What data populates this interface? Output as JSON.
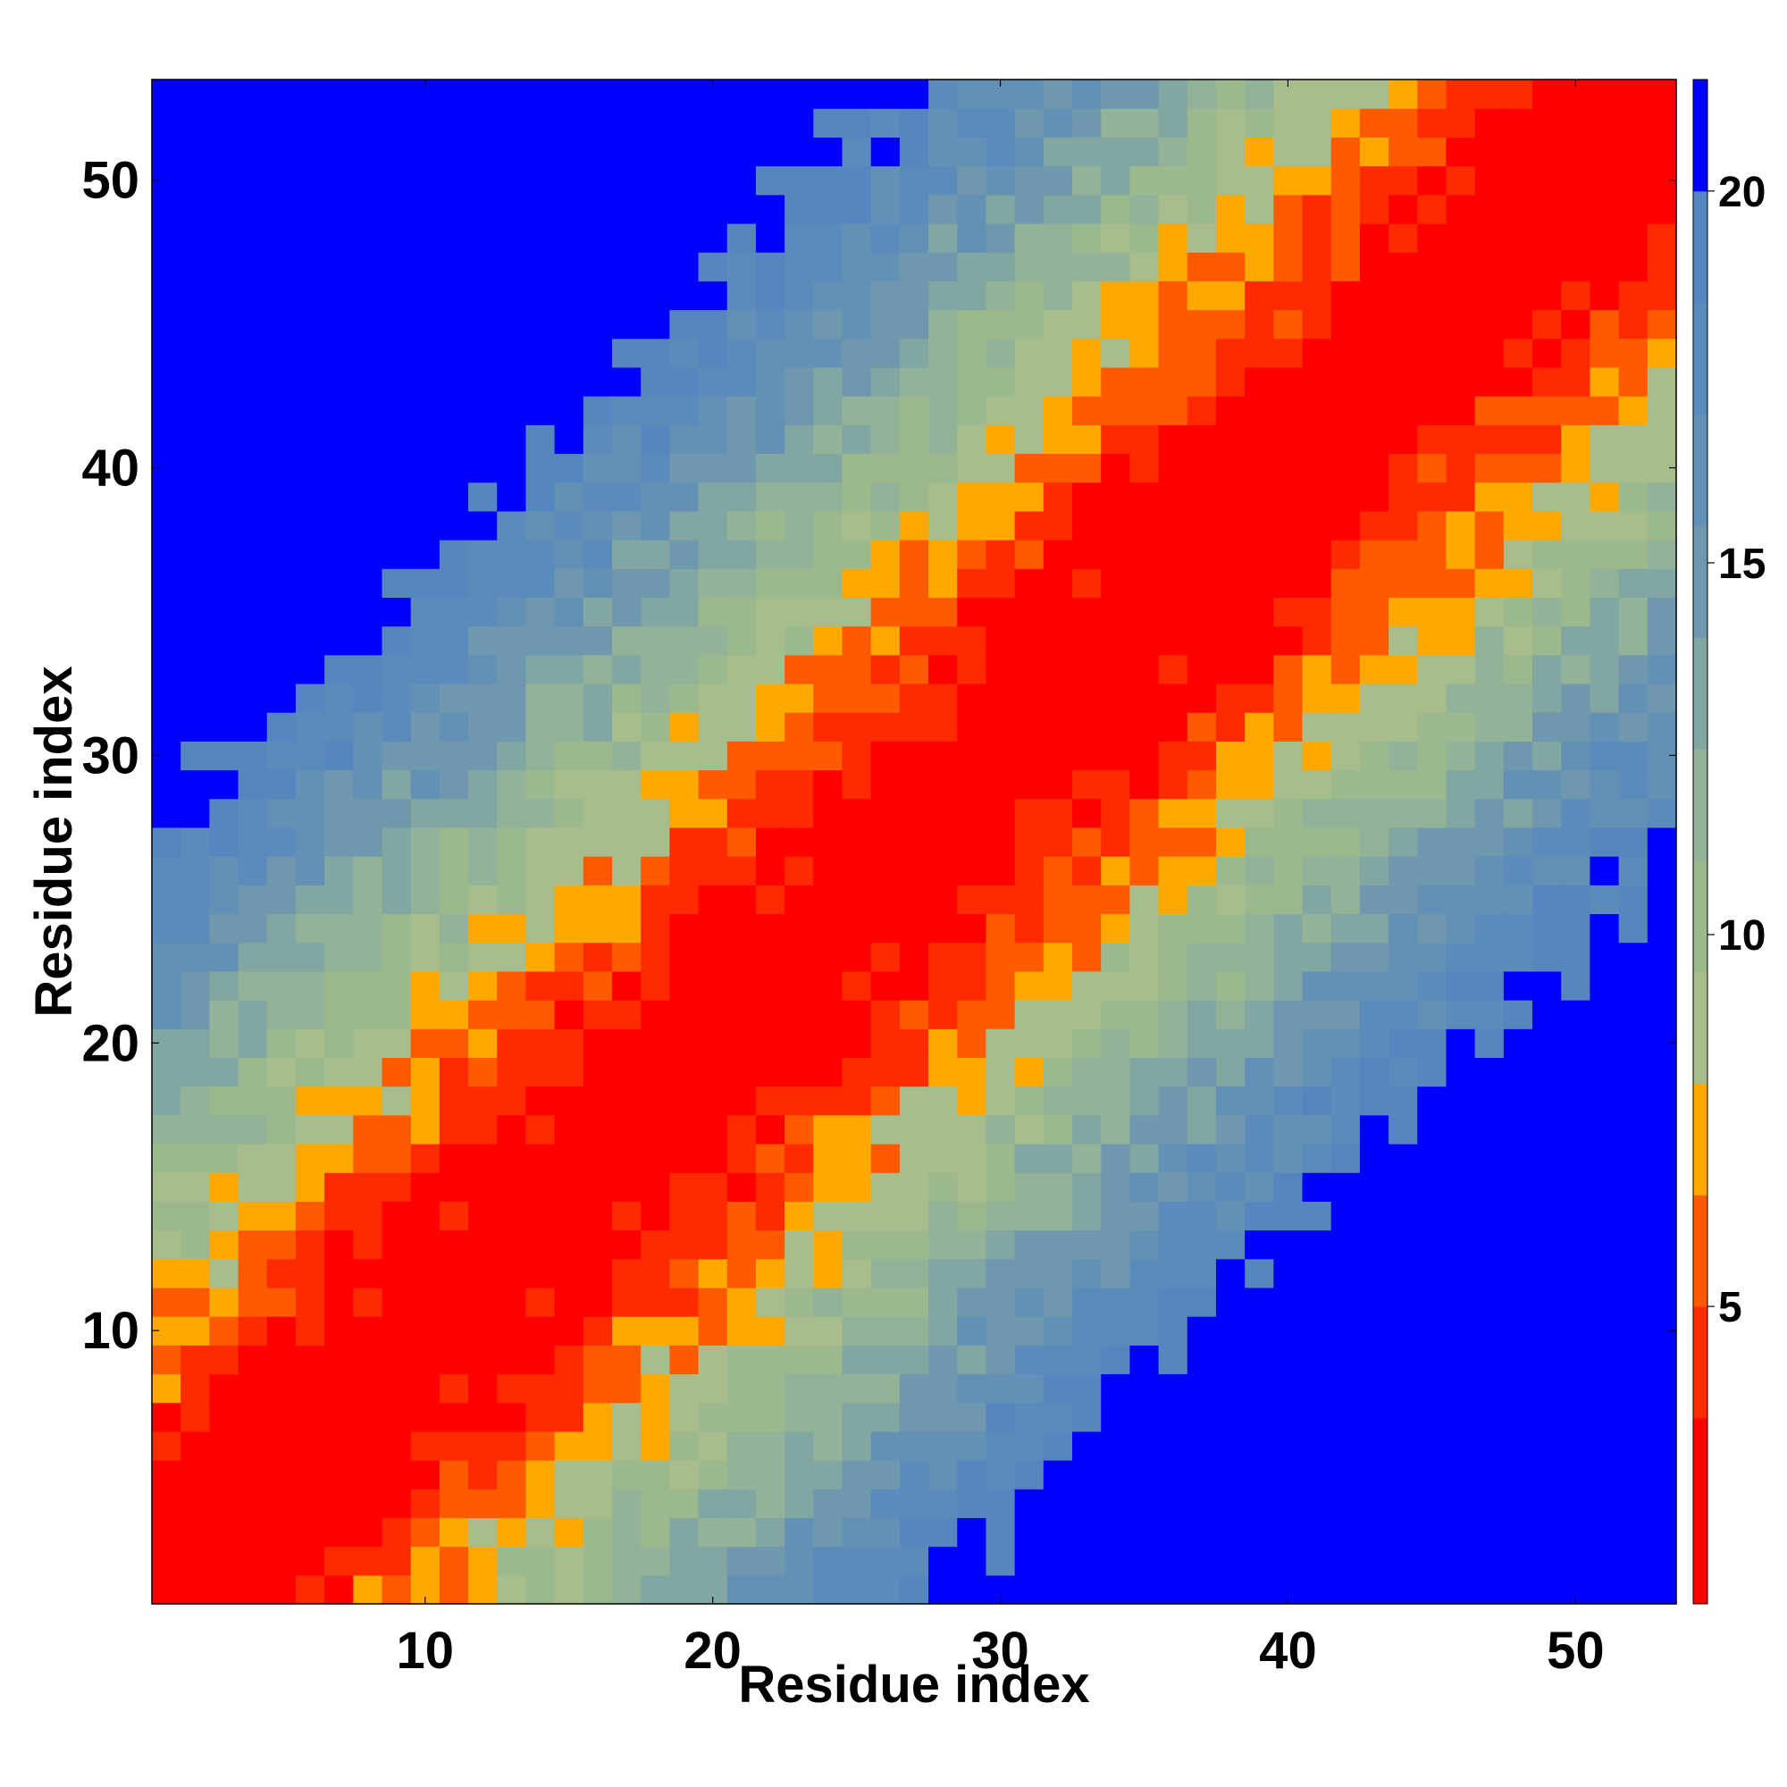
{
  "chart_data": {
    "type": "heatmap",
    "title": "",
    "xlabel": "Residue index",
    "ylabel": "Residue index",
    "n_residues": 53,
    "xlim": [
      0.5,
      53.5
    ],
    "ylim": [
      0.5,
      53.5
    ],
    "x_ticks": [
      10,
      20,
      30,
      40,
      50
    ],
    "y_ticks": [
      10,
      20,
      30,
      40,
      50
    ],
    "x_tick_labels": [
      "10",
      "20",
      "30",
      "40",
      "50"
    ],
    "y_tick_labels": [
      "10",
      "20",
      "30",
      "40",
      "50"
    ],
    "grid": false,
    "value_description": "distance between residues i and j, clipped at the colorbar maximum; approximated as a near-diagonal banded map",
    "approximate_cell_model": {
      "diagonal_value": 0,
      "increment_per_residue_separation": 0.75,
      "max_value": 21
    },
    "colorbar": {
      "location": "right",
      "range": [
        1,
        21.5
      ],
      "ticks": [
        5,
        10,
        15,
        20
      ],
      "tick_labels": [
        "5",
        "10",
        "15",
        "20"
      ],
      "levels": [
        {
          "max": 3.5,
          "color": "#ff0000"
        },
        {
          "max": 5.0,
          "color": "#ff2a00"
        },
        {
          "max": 6.5,
          "color": "#ff5a00"
        },
        {
          "max": 8.0,
          "color": "#ffa800"
        },
        {
          "max": 9.5,
          "color": "#a8bd8c"
        },
        {
          "max": 11.0,
          "color": "#9cb98e"
        },
        {
          "max": 12.5,
          "color": "#92b397"
        },
        {
          "max": 14.0,
          "color": "#82a6a2"
        },
        {
          "max": 15.5,
          "color": "#6f98ae"
        },
        {
          "max": 17.0,
          "color": "#6390b5"
        },
        {
          "max": 18.5,
          "color": "#5b8bba"
        },
        {
          "max": 20.0,
          "color": "#5586be"
        },
        {
          "max": 99,
          "color": "#0000ff"
        }
      ]
    }
  }
}
